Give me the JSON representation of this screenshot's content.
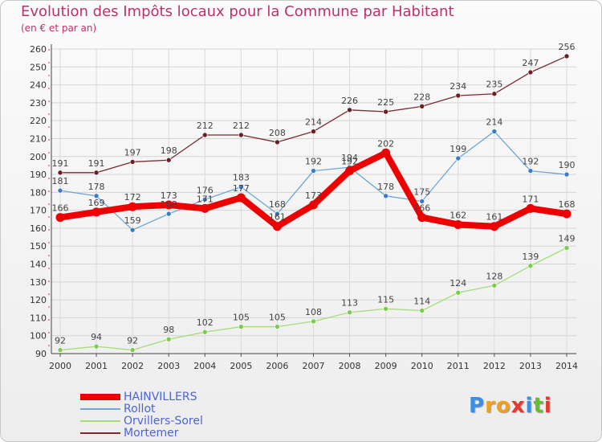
{
  "chart_data": {
    "type": "line",
    "title": "Evolution des Impôts locaux pour la Commune par Habitant",
    "subtitle": "(en € et par an)",
    "xlabel": "",
    "ylabel": "",
    "x": [
      "2000",
      "2001",
      "2002",
      "2003",
      "2004",
      "2005",
      "2006",
      "2007",
      "2008",
      "2009",
      "2010",
      "2011",
      "2012",
      "2013",
      "2014"
    ],
    "ylim": [
      90,
      260
    ],
    "yticks": [
      90,
      100,
      110,
      120,
      130,
      140,
      150,
      160,
      170,
      180,
      190,
      200,
      210,
      220,
      230,
      240,
      250,
      260
    ],
    "grid": true,
    "series": [
      {
        "name": "Mortemer",
        "color": "#7a2a30",
        "point_color": "#6b1f24",
        "values": [
          191,
          191,
          197,
          198,
          212,
          212,
          208,
          214,
          226,
          225,
          228,
          234,
          235,
          247,
          256
        ]
      },
      {
        "name": "Rollot",
        "color": "#6fa6d6",
        "point_color": "#3a7cc4",
        "values": [
          181,
          178,
          159,
          168,
          176,
          183,
          168,
          192,
          194,
          178,
          175,
          199,
          214,
          192,
          190
        ]
      },
      {
        "name": "Orvillers-Sorel",
        "color": "#a6dc78",
        "point_color": "#7ccc4c",
        "values": [
          92,
          94,
          92,
          98,
          102,
          105,
          105,
          108,
          113,
          115,
          114,
          124,
          128,
          139,
          149
        ]
      },
      {
        "name": "HAINVILLERS",
        "color": "#ee0000",
        "point_color": "#ee0000",
        "values": [
          166,
          169,
          172,
          173,
          171,
          177,
          161,
          173,
          192,
          202,
          166,
          162,
          161,
          171,
          168
        ]
      }
    ],
    "legend_order": [
      "HAINVILLERS",
      "Rollot",
      "Orvillers-Sorel",
      "Mortemer"
    ],
    "legend_position": "bottom-left"
  },
  "logo": {
    "letters": [
      "P",
      "r",
      "o",
      "x",
      "i",
      "t",
      "i"
    ],
    "colors": [
      "#3a8ee6",
      "#f0a020",
      "#f0a020",
      "#e8382a",
      "#3a8ee6",
      "#66bb33",
      "#e8382a"
    ]
  }
}
